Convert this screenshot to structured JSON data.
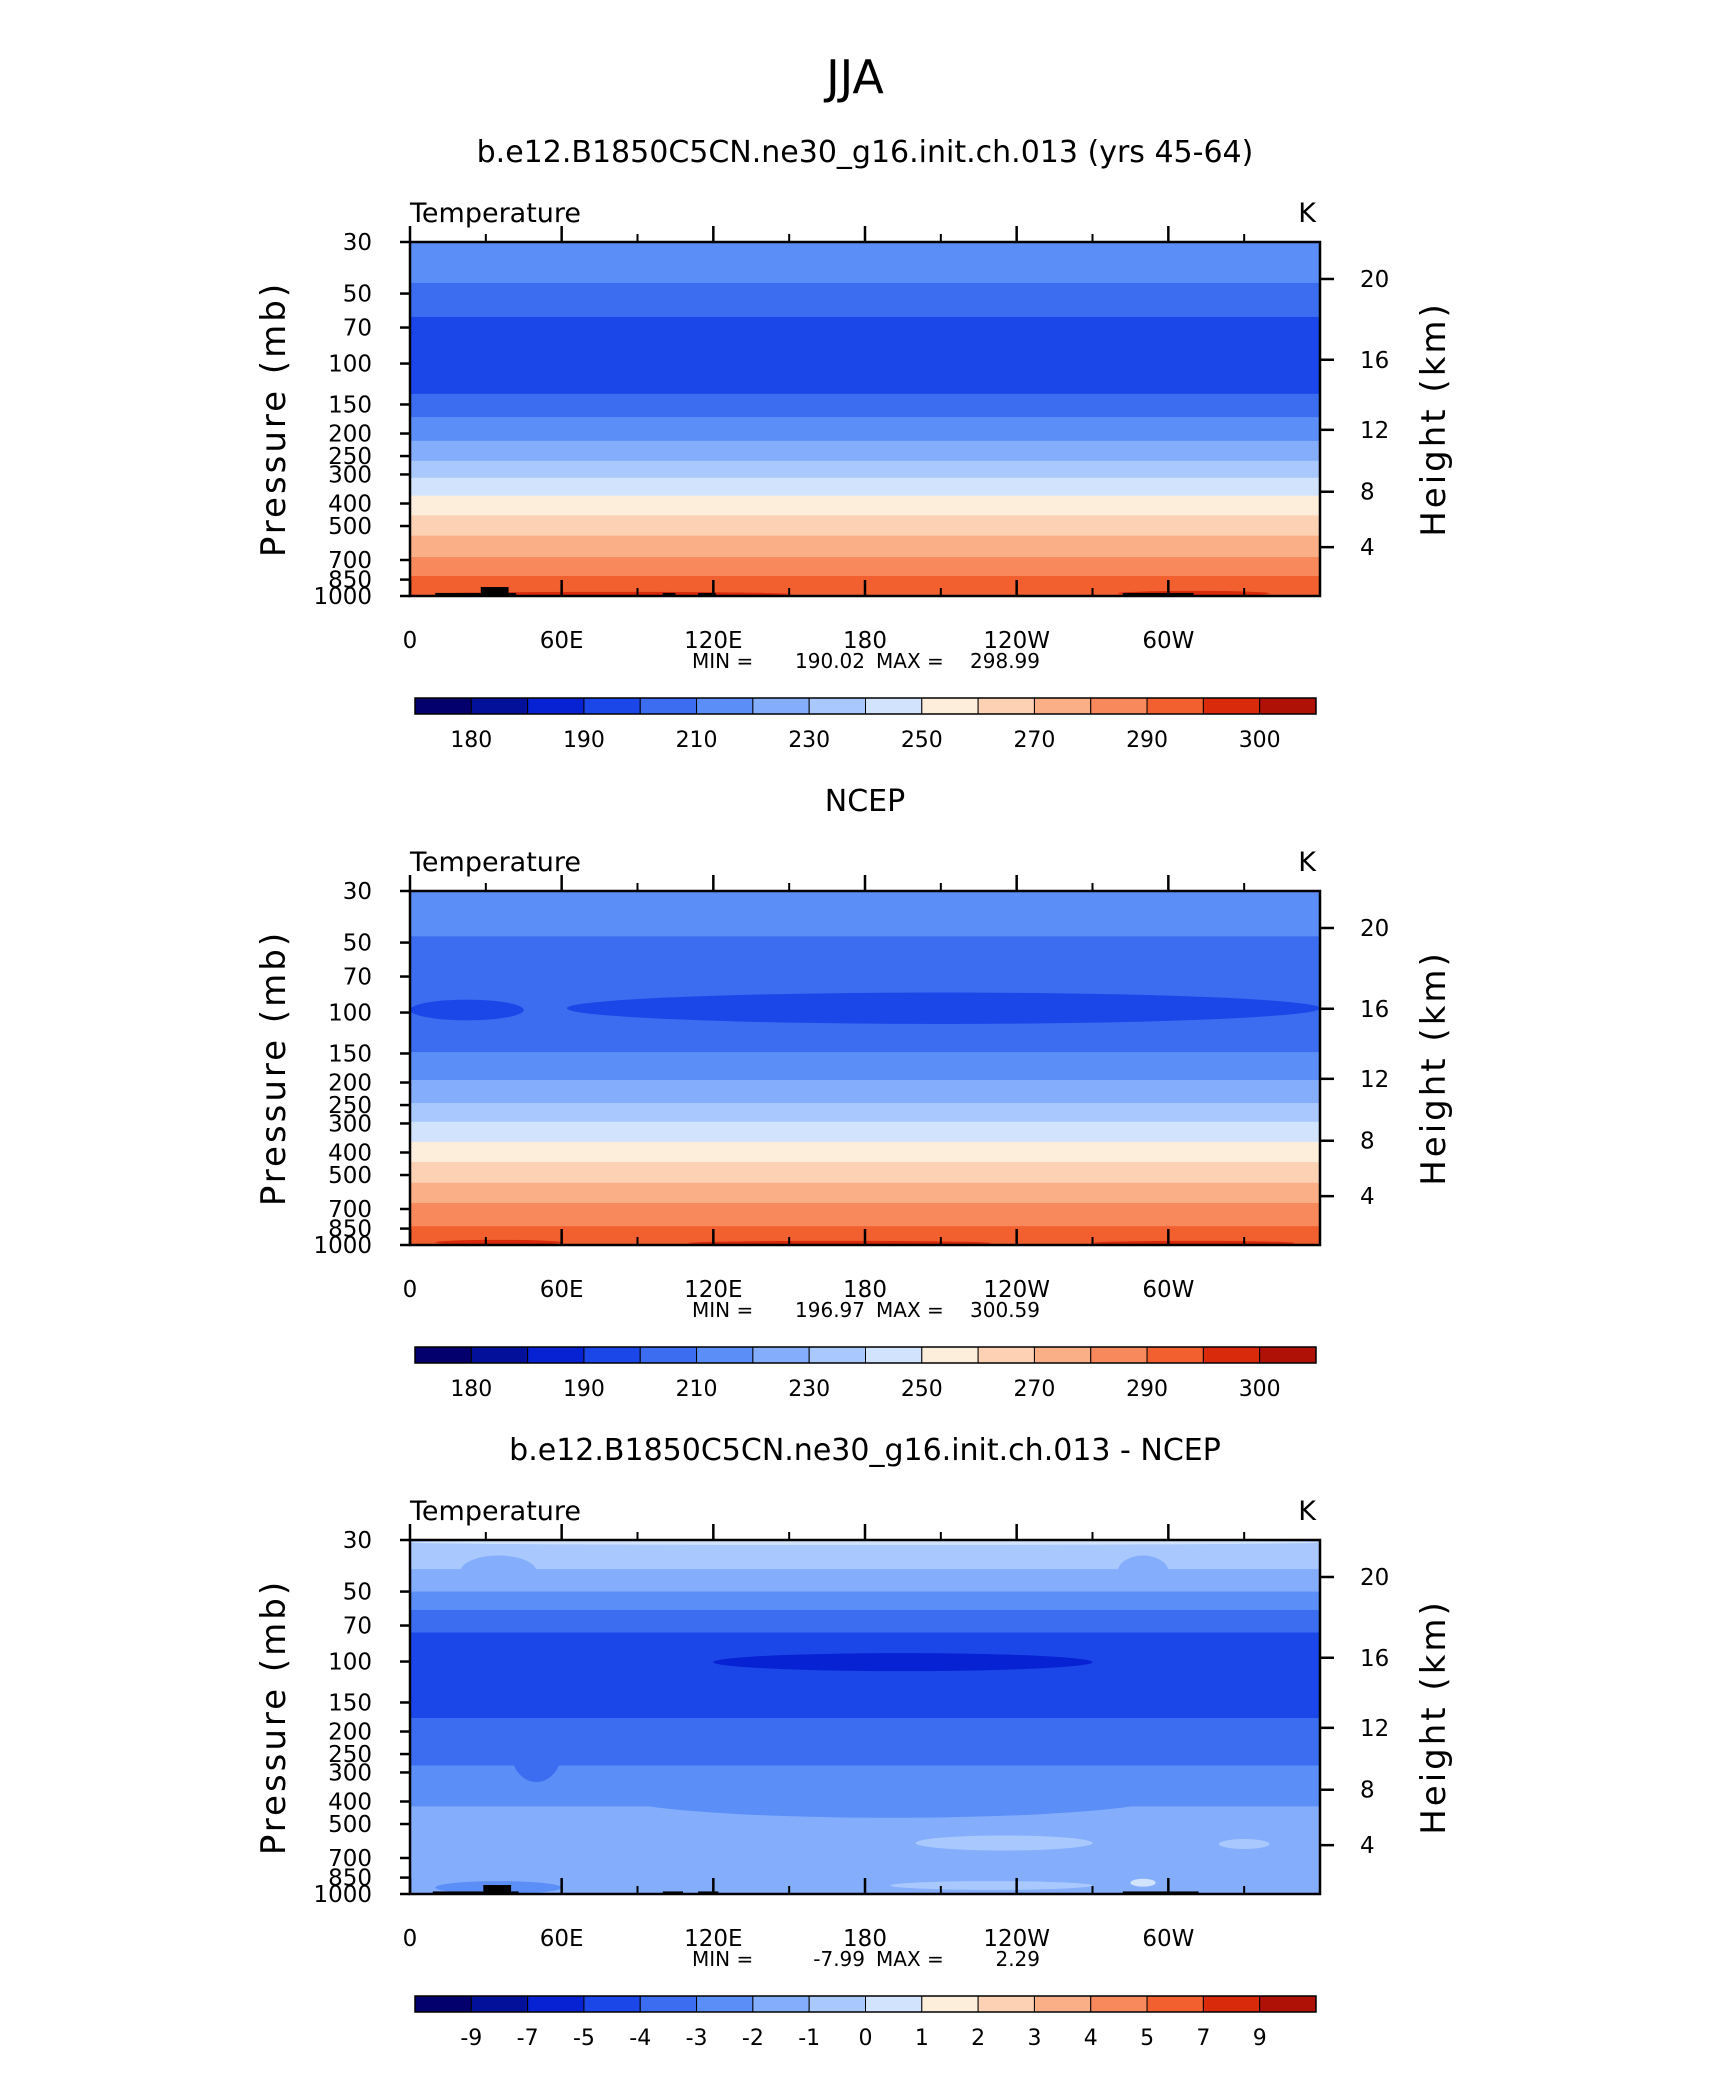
{
  "figure": {
    "season_title": "JJA"
  },
  "chart_data": [
    {
      "type": "heatmap",
      "title": "b.e12.B1850C5CN.ne30_g16.init.ch.013 (yrs 45-64)",
      "left_string": "Temperature",
      "right_string": "K",
      "xlabel": "",
      "ylabel": "Pressure (mb)",
      "y2label": "Height (km)",
      "x_ticks": [
        "0",
        "60E",
        "120E",
        "180",
        "120W",
        "60W"
      ],
      "x_tick_values": [
        0,
        60,
        120,
        180,
        240,
        300
      ],
      "xlim": [
        0,
        360
      ],
      "y_ticks": [
        "30",
        "50",
        "70",
        "100",
        "150",
        "200",
        "250",
        "300",
        "400",
        "500",
        "700",
        "850",
        "1000"
      ],
      "y_tick_values": [
        30,
        50,
        70,
        100,
        150,
        200,
        250,
        300,
        400,
        500,
        700,
        850,
        1000
      ],
      "ylim": [
        1000,
        30
      ],
      "y2_ticks": [
        "4",
        "8",
        "12",
        "16",
        "20"
      ],
      "y2_tick_values": [
        4,
        8,
        12,
        16,
        20
      ],
      "stats": {
        "min_label": "MIN =",
        "min": "190.02",
        "max_label": "MAX =",
        "max": "298.99"
      },
      "contour_levels": [
        180,
        185,
        190,
        200,
        210,
        220,
        230,
        240,
        250,
        260,
        270,
        280,
        290,
        295,
        300
      ],
      "colorbar_labels": [
        "180",
        "190",
        "210",
        "230",
        "250",
        "270",
        "290",
        "300"
      ],
      "colorbar_label_positions": [
        1,
        3,
        5,
        7,
        9,
        11,
        13,
        15
      ],
      "bands": [
        {
          "p_top": 30,
          "p_bottom": 45,
          "value": 215
        },
        {
          "p_top": 45,
          "p_bottom": 63,
          "value": 205
        },
        {
          "p_top": 63,
          "p_bottom": 135,
          "value": 195
        },
        {
          "p_top": 135,
          "p_bottom": 170,
          "value": 205
        },
        {
          "p_top": 170,
          "p_bottom": 215,
          "value": 215
        },
        {
          "p_top": 215,
          "p_bottom": 262,
          "value": 225
        },
        {
          "p_top": 262,
          "p_bottom": 310,
          "value": 235
        },
        {
          "p_top": 310,
          "p_bottom": 370,
          "value": 245
        },
        {
          "p_top": 370,
          "p_bottom": 450,
          "value": 255
        },
        {
          "p_top": 450,
          "p_bottom": 550,
          "value": 265
        },
        {
          "p_top": 550,
          "p_bottom": 680,
          "value": 275
        },
        {
          "p_top": 680,
          "p_bottom": 820,
          "value": 285
        },
        {
          "p_top": 820,
          "p_bottom": 1000,
          "value": 292
        }
      ],
      "features": [
        {
          "kind": "blob",
          "value": 297,
          "lon0": 10,
          "lon1": 150,
          "p_top": 960,
          "p_bottom": 1000
        },
        {
          "kind": "blob",
          "value": 297,
          "lon0": 280,
          "lon1": 340,
          "p_top": 950,
          "p_bottom": 1000
        },
        {
          "kind": "terrain",
          "lon0": 10,
          "lon1": 28,
          "p_top": 970
        },
        {
          "kind": "terrain",
          "lon0": 28,
          "lon1": 39,
          "p_top": 915
        },
        {
          "kind": "terrain",
          "lon0": 39,
          "lon1": 42,
          "p_top": 970
        },
        {
          "kind": "terrain",
          "lon0": 100,
          "lon1": 105,
          "p_top": 970
        },
        {
          "kind": "terrain",
          "lon0": 114,
          "lon1": 121,
          "p_top": 970
        },
        {
          "kind": "terrain",
          "lon0": 282,
          "lon1": 310,
          "p_top": 970
        }
      ]
    },
    {
      "type": "heatmap",
      "title": "NCEP",
      "left_string": "Temperature",
      "right_string": "K",
      "xlabel": "",
      "ylabel": "Pressure (mb)",
      "y2label": "Height (km)",
      "x_ticks": [
        "0",
        "60E",
        "120E",
        "180",
        "120W",
        "60W"
      ],
      "x_tick_values": [
        0,
        60,
        120,
        180,
        240,
        300
      ],
      "xlim": [
        0,
        360
      ],
      "y_ticks": [
        "30",
        "50",
        "70",
        "100",
        "150",
        "200",
        "250",
        "300",
        "400",
        "500",
        "700",
        "850",
        "1000"
      ],
      "y_tick_values": [
        30,
        50,
        70,
        100,
        150,
        200,
        250,
        300,
        400,
        500,
        700,
        850,
        1000
      ],
      "ylim": [
        1000,
        30
      ],
      "y2_ticks": [
        "4",
        "8",
        "12",
        "16",
        "20"
      ],
      "y2_tick_values": [
        4,
        8,
        12,
        16,
        20
      ],
      "stats": {
        "min_label": "MIN =",
        "min": "196.97",
        "max_label": "MAX =",
        "max": "300.59"
      },
      "contour_levels": [
        180,
        185,
        190,
        200,
        210,
        220,
        230,
        240,
        250,
        260,
        270,
        280,
        290,
        295,
        300
      ],
      "colorbar_labels": [
        "180",
        "190",
        "210",
        "230",
        "250",
        "270",
        "290",
        "300"
      ],
      "colorbar_label_positions": [
        1,
        3,
        5,
        7,
        9,
        11,
        13,
        15
      ],
      "bands": [
        {
          "p_top": 30,
          "p_bottom": 47,
          "value": 215
        },
        {
          "p_top": 47,
          "p_bottom": 148,
          "value": 205
        },
        {
          "p_top": 148,
          "p_bottom": 195,
          "value": 215
        },
        {
          "p_top": 195,
          "p_bottom": 245,
          "value": 225
        },
        {
          "p_top": 245,
          "p_bottom": 295,
          "value": 235
        },
        {
          "p_top": 295,
          "p_bottom": 360,
          "value": 245
        },
        {
          "p_top": 360,
          "p_bottom": 440,
          "value": 255
        },
        {
          "p_top": 440,
          "p_bottom": 540,
          "value": 265
        },
        {
          "p_top": 540,
          "p_bottom": 660,
          "value": 275
        },
        {
          "p_top": 660,
          "p_bottom": 830,
          "value": 285
        },
        {
          "p_top": 830,
          "p_bottom": 1000,
          "value": 292
        }
      ],
      "features": [
        {
          "kind": "blob",
          "value": 195,
          "lon0": 0,
          "lon1": 45,
          "p_top": 88,
          "p_bottom": 108
        },
        {
          "kind": "blob",
          "value": 195,
          "lon0": 62,
          "lon1": 360,
          "p_top": 82,
          "p_bottom": 112
        },
        {
          "kind": "blob",
          "value": 297,
          "lon0": 10,
          "lon1": 60,
          "p_top": 950,
          "p_bottom": 1000
        },
        {
          "kind": "blob",
          "value": 297,
          "lon0": 110,
          "lon1": 230,
          "p_top": 960,
          "p_bottom": 1000
        },
        {
          "kind": "blob",
          "value": 297,
          "lon0": 270,
          "lon1": 350,
          "p_top": 960,
          "p_bottom": 1000
        }
      ]
    },
    {
      "type": "heatmap",
      "title": "b.e12.B1850C5CN.ne30_g16.init.ch.013 - NCEP",
      "left_string": "Temperature",
      "right_string": "K",
      "xlabel": "",
      "ylabel": "Pressure (mb)",
      "y2label": "Height (km)",
      "x_ticks": [
        "0",
        "60E",
        "120E",
        "180",
        "120W",
        "60W"
      ],
      "x_tick_values": [
        0,
        60,
        120,
        180,
        240,
        300
      ],
      "xlim": [
        0,
        360
      ],
      "y_ticks": [
        "30",
        "50",
        "70",
        "100",
        "150",
        "200",
        "250",
        "300",
        "400",
        "500",
        "700",
        "850",
        "1000"
      ],
      "y_tick_values": [
        30,
        50,
        70,
        100,
        150,
        200,
        250,
        300,
        400,
        500,
        700,
        850,
        1000
      ],
      "ylim": [
        1000,
        30
      ],
      "y2_ticks": [
        "4",
        "8",
        "12",
        "16",
        "20"
      ],
      "y2_tick_values": [
        4,
        8,
        12,
        16,
        20
      ],
      "stats": {
        "min_label": "MIN =",
        "min": "-7.99",
        "max_label": "MAX =",
        "max": "2.29"
      },
      "contour_levels": [
        -9,
        -7,
        -5,
        -4,
        -3,
        -2,
        -1,
        0,
        1,
        2,
        3,
        4,
        5,
        7,
        9
      ],
      "colorbar_labels": [
        "-9",
        "-7",
        "-5",
        "-4",
        "-3",
        "-2",
        "-1",
        "0",
        "1",
        "2",
        "3",
        "4",
        "5",
        "7",
        "9"
      ],
      "colorbar_label_positions": [
        1,
        2,
        3,
        4,
        5,
        6,
        7,
        8,
        9,
        10,
        11,
        12,
        13,
        14,
        15
      ],
      "bands": [
        {
          "p_top": 30,
          "p_bottom": 40,
          "value": -0.5
        },
        {
          "p_top": 40,
          "p_bottom": 50,
          "value": -1.5
        },
        {
          "p_top": 50,
          "p_bottom": 60,
          "value": -2.5
        },
        {
          "p_top": 60,
          "p_bottom": 75,
          "value": -3.5
        },
        {
          "p_top": 75,
          "p_bottom": 175,
          "value": -4.5
        },
        {
          "p_top": 175,
          "p_bottom": 280,
          "value": -3.5
        },
        {
          "p_top": 280,
          "p_bottom": 420,
          "value": -2.5
        },
        {
          "p_top": 420,
          "p_bottom": 1000,
          "value": -1.5
        }
      ],
      "features": [
        {
          "kind": "blob",
          "value": 0.5,
          "lon0": 0,
          "lon1": 360,
          "p_top": 30,
          "p_bottom": 31.5
        },
        {
          "kind": "blob",
          "value": -1.5,
          "lon0": 20,
          "lon1": 50,
          "p_top": 35,
          "p_bottom": 48
        },
        {
          "kind": "blob",
          "value": -1.5,
          "lon0": 280,
          "lon1": 300,
          "p_top": 35,
          "p_bottom": 48
        },
        {
          "kind": "blob",
          "value": -6,
          "lon0": 120,
          "lon1": 270,
          "p_top": 92,
          "p_bottom": 110
        },
        {
          "kind": "blob",
          "value": -3.5,
          "lon0": 40,
          "lon1": 60,
          "p_top": 180,
          "p_bottom": 330
        },
        {
          "kind": "blob",
          "value": -2.5,
          "lon0": 80,
          "lon1": 300,
          "p_top": 300,
          "p_bottom": 470
        },
        {
          "kind": "blob",
          "value": -0.5,
          "lon0": 200,
          "lon1": 270,
          "p_top": 560,
          "p_bottom": 650
        },
        {
          "kind": "blob",
          "value": -0.5,
          "lon0": 320,
          "lon1": 340,
          "p_top": 580,
          "p_bottom": 640
        },
        {
          "kind": "blob",
          "value": -2.5,
          "lon0": 10,
          "lon1": 60,
          "p_top": 880,
          "p_bottom": 1000
        },
        {
          "kind": "blob",
          "value": -0.5,
          "lon0": 190,
          "lon1": 270,
          "p_top": 880,
          "p_bottom": 960
        },
        {
          "kind": "blob",
          "value": 0.5,
          "lon0": 285,
          "lon1": 295,
          "p_top": 860,
          "p_bottom": 930
        },
        {
          "kind": "terrain",
          "lon0": 9,
          "lon1": 29,
          "p_top": 975
        },
        {
          "kind": "terrain",
          "lon0": 29,
          "lon1": 40,
          "p_top": 915
        },
        {
          "kind": "terrain",
          "lon0": 40,
          "lon1": 43,
          "p_top": 975
        },
        {
          "kind": "terrain",
          "lon0": 100,
          "lon1": 108,
          "p_top": 975
        },
        {
          "kind": "terrain",
          "lon0": 114,
          "lon1": 122,
          "p_top": 975
        },
        {
          "kind": "terrain",
          "lon0": 282,
          "lon1": 312,
          "p_top": 975
        }
      ]
    }
  ]
}
